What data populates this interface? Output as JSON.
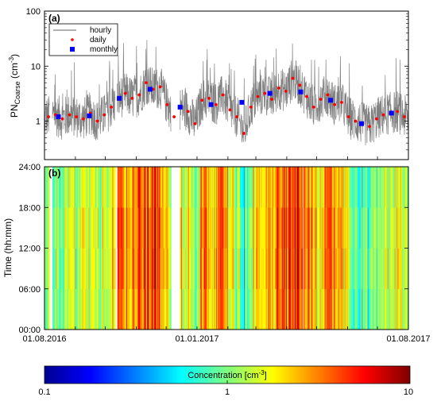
{
  "chart_data": [
    {
      "panel_label": "(a)",
      "type": "line",
      "ylabel": {
        "main": "PN",
        "sub": "Coarse",
        "unit_open": " (cm",
        "unit_sup": "-3",
        "unit_close": ")"
      },
      "yscale": "log",
      "ylim": [
        0.2,
        100
      ],
      "yticks": [
        1,
        10,
        100
      ],
      "xlim": [
        "2016-08-01",
        "2017-08-01"
      ],
      "legend": {
        "position": "top-left",
        "entries": [
          "hourly",
          "daily",
          "monthly"
        ]
      },
      "series": [
        {
          "name": "hourly",
          "color": "#808080",
          "style": "line"
        },
        {
          "name": "daily",
          "color": "#ff0000",
          "style": "dots",
          "x": [
            "2016-08-05",
            "2016-08-12",
            "2016-08-19",
            "2016-08-26",
            "2016-09-02",
            "2016-09-09",
            "2016-09-16",
            "2016-09-23",
            "2016-09-30",
            "2016-10-07",
            "2016-10-14",
            "2016-10-21",
            "2016-10-28",
            "2016-11-04",
            "2016-11-11",
            "2016-11-18",
            "2016-11-25",
            "2016-12-02",
            "2016-12-09",
            "2016-12-16",
            "2016-12-23",
            "2016-12-30",
            "2017-01-06",
            "2017-01-13",
            "2017-01-20",
            "2017-01-27",
            "2017-02-03",
            "2017-02-10",
            "2017-02-17",
            "2017-02-24",
            "2017-03-03",
            "2017-03-10",
            "2017-03-17",
            "2017-03-24",
            "2017-03-31",
            "2017-04-07",
            "2017-04-14",
            "2017-04-21",
            "2017-04-28",
            "2017-05-05",
            "2017-05-12",
            "2017-05-19",
            "2017-05-26",
            "2017-06-02",
            "2017-06-09",
            "2017-06-16",
            "2017-06-23",
            "2017-06-30",
            "2017-07-07",
            "2017-07-14",
            "2017-07-21",
            "2017-07-28"
          ],
          "y": [
            1.2,
            1.3,
            1.1,
            1.3,
            1.2,
            1.1,
            1.4,
            1.0,
            1.3,
            1.8,
            2.5,
            3.2,
            2.6,
            3.0,
            5.0,
            3.8,
            4.2,
            2.0,
            1.2,
            1.8,
            1.5,
            0.9,
            2.4,
            2.6,
            2.0,
            3.0,
            1.6,
            1.2,
            0.6,
            1.8,
            2.8,
            3.2,
            2.5,
            4.0,
            3.5,
            6.0,
            4.5,
            2.8,
            1.8,
            2.5,
            3.0,
            2.0,
            2.2,
            1.2,
            1.0,
            0.9,
            0.8,
            1.1,
            1.3,
            1.4,
            1.5,
            1.2
          ]
        },
        {
          "name": "monthly",
          "color": "#0000ff",
          "style": "squares",
          "x": [
            "2016-08-15",
            "2016-09-15",
            "2016-10-15",
            "2016-11-15",
            "2016-12-15",
            "2017-01-15",
            "2017-02-15",
            "2017-03-15",
            "2017-04-15",
            "2017-05-15",
            "2017-06-15",
            "2017-07-15"
          ],
          "y": [
            1.2,
            1.25,
            2.6,
            3.8,
            1.8,
            2.0,
            2.2,
            3.2,
            3.4,
            2.4,
            0.9,
            1.4
          ]
        }
      ]
    },
    {
      "panel_label": "(b)",
      "type": "heatmap",
      "ylabel": "Time (hh:mm)",
      "yticks": [
        "00:00",
        "06:00",
        "12:00",
        "18:00",
        "24:00"
      ],
      "xticks": [
        "01.08.2016",
        "01.01.2017",
        "01.08.2017"
      ],
      "xlim": [
        "2016-08-01",
        "2017-08-01"
      ],
      "data_gaps": [
        [
          "2016-08-06",
          "2016-08-08"
        ],
        [
          "2016-10-11",
          "2016-10-12"
        ],
        [
          "2016-12-06",
          "2016-12-14"
        ],
        [
          "2017-04-17",
          "2017-04-17"
        ]
      ],
      "daily_level": [
        1.1,
        1.2,
        1.0,
        1.3,
        1.2,
        1.1,
        1.4,
        1.0,
        1.3,
        1.8,
        2.5,
        3.2,
        2.6,
        3.0,
        5.0,
        3.8,
        4.2,
        2.0,
        1.2,
        1.8,
        1.5,
        0.9,
        2.4,
        2.6,
        2.0,
        3.0,
        1.6,
        1.2,
        0.6,
        1.8,
        2.8,
        3.2,
        2.5,
        4.0,
        3.5,
        6.0,
        4.5,
        2.8,
        1.8,
        2.5,
        3.0,
        2.0,
        2.2,
        1.2,
        1.0,
        0.9,
        0.8,
        1.1,
        1.3,
        1.4,
        1.5,
        1.2
      ],
      "colorbar": {
        "label_main": "Concentration [cm",
        "label_sup": "-3",
        "label_close": "]",
        "scale": "log",
        "range": [
          0.1,
          10
        ],
        "ticks": [
          "0.1",
          "1",
          "10"
        ],
        "colormap": "jet"
      }
    }
  ]
}
